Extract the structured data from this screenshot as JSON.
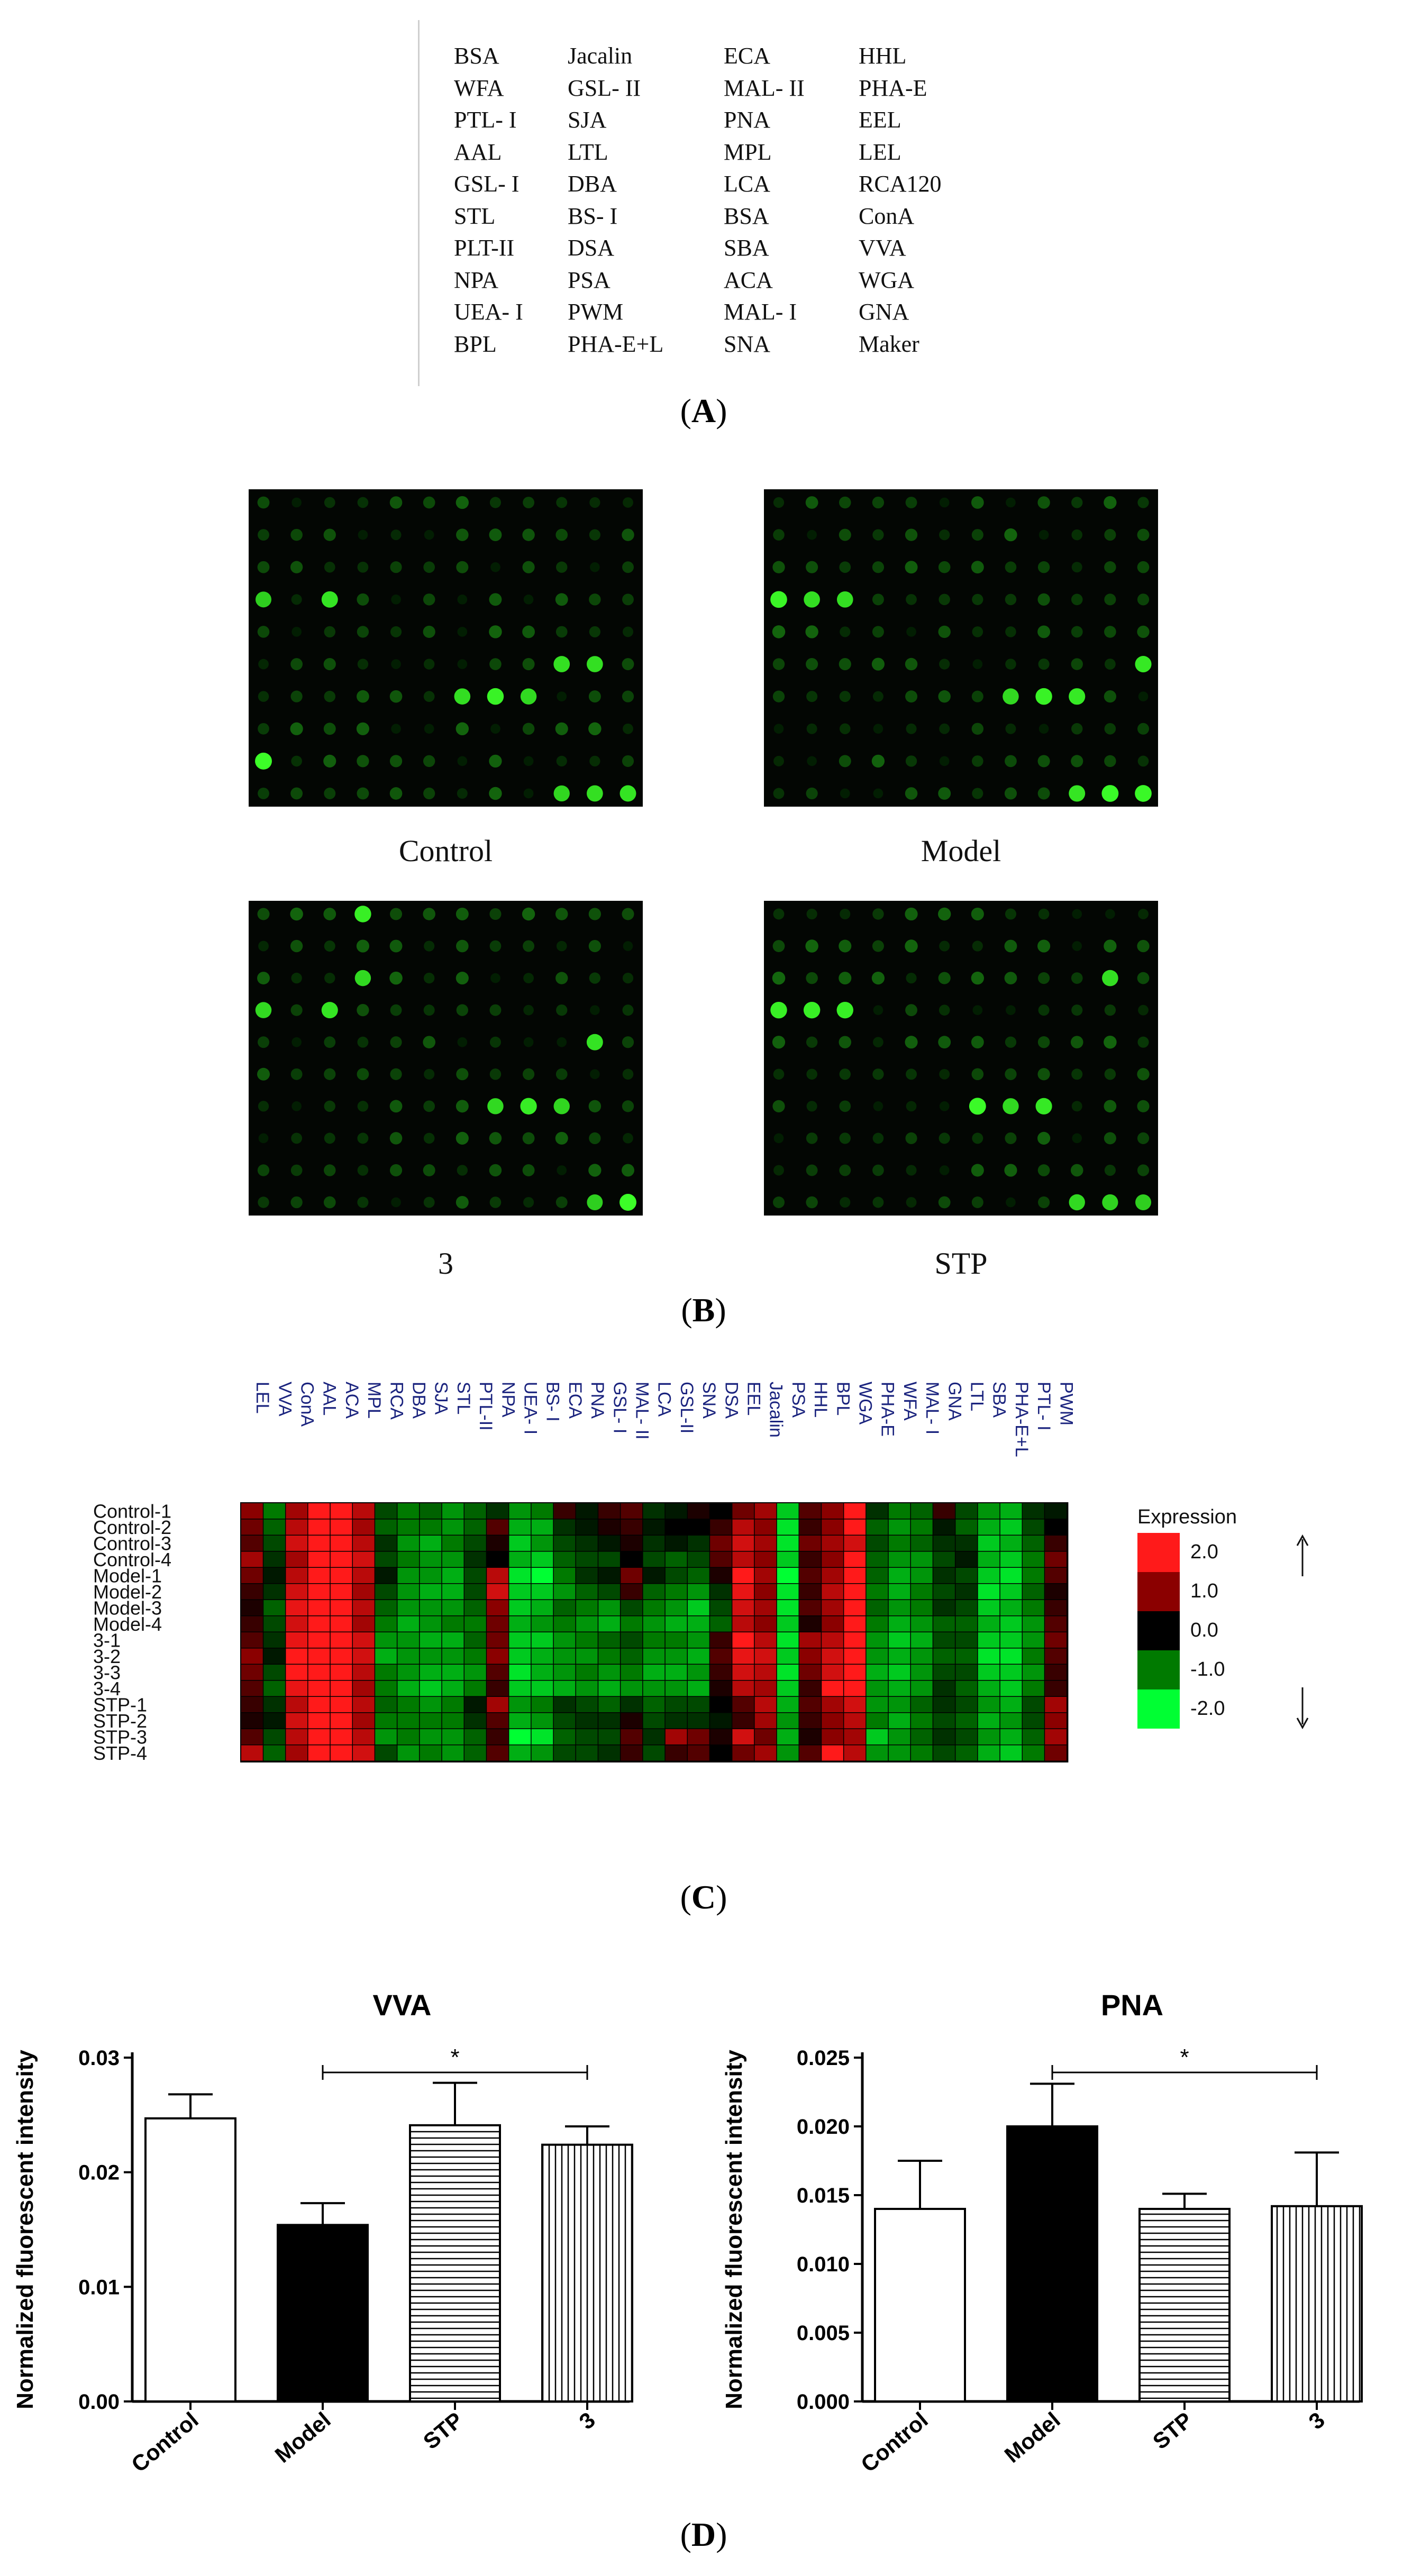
{
  "panelA": {
    "label": "A",
    "columns": [
      [
        "BSA",
        "WFA",
        "PTL- I",
        "AAL",
        "GSL- I",
        "STL",
        "PLT-II",
        "NPA",
        "UEA- I",
        "BPL"
      ],
      [
        "Jacalin",
        "GSL- II",
        "SJA",
        "LTL",
        "DBA",
        "BS- I",
        "DSA",
        "PSA",
        "PWM",
        "PHA-E+L"
      ],
      [
        "ECA",
        "MAL- II",
        "PNA",
        "MPL",
        "LCA",
        "BSA",
        "SBA",
        "ACA",
        "MAL- I",
        "SNA"
      ],
      [
        "HHL",
        "PHA-E",
        "EEL",
        "LEL",
        "RCA120",
        "ConA",
        "VVA",
        "WGA",
        "GNA",
        "Maker"
      ]
    ]
  },
  "panelB": {
    "label": "B",
    "arrays": [
      {
        "caption": "Control"
      },
      {
        "caption": "Model"
      },
      {
        "caption": "3"
      },
      {
        "caption": "STP"
      }
    ]
  },
  "panelC": {
    "label": "C",
    "legend": {
      "title": "Expression",
      "ticks": [
        "2.0",
        "1.0",
        "0.0",
        "-1.0",
        "-2.0"
      ],
      "colors": [
        "#ff1a1a",
        "#8b0000",
        "#000000",
        "#007a00",
        "#00ff33"
      ]
    }
  },
  "panelD": {
    "label": "D"
  },
  "chart_data": [
    {
      "type": "heatmap",
      "columns": [
        "LEL",
        "VVA",
        "ConA",
        "AAL",
        "ACA",
        "MPL",
        "RCA",
        "DBA",
        "SJA",
        "STL",
        "PTL-II",
        "NPA",
        "UEA- I",
        "BS- I",
        "ECA",
        "PNA",
        "GSL- I",
        "MAL- II",
        "LCA",
        "GSL-II",
        "SNA",
        "DSA",
        "EEL",
        "Jacalin",
        "PSA",
        "HHL",
        "BPL",
        "WGA",
        "PHA-E",
        "WFA",
        "MAL- I",
        "GNA",
        "LTL",
        "SBA",
        "PHA-E+L",
        "PTL- I",
        "PWM"
      ],
      "rows": [
        "Control-1",
        "Control-2",
        "Control-3",
        "Control-4",
        "Model-1",
        "Model-2",
        "Model-3",
        "Model-4",
        "3-1",
        "3-2",
        "3-3",
        "3-4",
        "STP-1",
        "STP-2",
        "STP-3",
        "STP-4"
      ],
      "values": [
        [
          1,
          -1,
          1.2,
          2,
          2,
          1.4,
          -0.6,
          -1,
          -0.8,
          -1.2,
          -0.8,
          -0.4,
          -1.2,
          -1,
          0.4,
          -0.2,
          0.4,
          0.6,
          -0.4,
          -0.2,
          0.2,
          0,
          0.8,
          1.2,
          -1.6,
          0.6,
          1,
          2,
          -0.4,
          -1,
          -0.8,
          0.4,
          -0.6,
          -1.2,
          -1.4,
          -0.4,
          -0.2
        ],
        [
          0.8,
          -0.8,
          1.4,
          2,
          2,
          1.2,
          -0.8,
          -1,
          -1,
          -1.2,
          -0.8,
          0.6,
          -1.4,
          -1.4,
          -0.4,
          -0.2,
          0.2,
          0.4,
          -0.2,
          0,
          0,
          0.4,
          1.4,
          1,
          -1.8,
          0.4,
          1,
          2,
          -0.8,
          -1.2,
          -1,
          -0.2,
          -0.8,
          -1.4,
          -1.6,
          -0.6,
          0
        ],
        [
          0.6,
          -0.6,
          1.6,
          2,
          2,
          1.4,
          -0.4,
          -1.2,
          -1.4,
          -1,
          -0.6,
          0.2,
          -1.6,
          -1.2,
          -0.6,
          -0.4,
          -0.2,
          0.2,
          -0.4,
          -0.2,
          -0.4,
          0.8,
          1.6,
          1.2,
          -1.8,
          0.8,
          1.2,
          1.6,
          -0.6,
          -1,
          -0.8,
          -0.4,
          -0.4,
          -1.6,
          -1.4,
          -0.8,
          0.4
        ],
        [
          1.2,
          -0.4,
          1.2,
          2,
          2,
          1.6,
          -0.6,
          -1,
          -1.2,
          -1.2,
          -0.4,
          0,
          -1.4,
          -1.6,
          -0.8,
          -0.6,
          -0.6,
          0,
          -0.6,
          -0.8,
          -0.6,
          0.6,
          1.4,
          1,
          -1.6,
          0.4,
          1,
          2,
          -0.8,
          -1.2,
          -1.2,
          -0.6,
          -0.2,
          -1.4,
          -1.6,
          -1,
          0.8
        ],
        [
          0.8,
          -0.2,
          1.4,
          2,
          2,
          1.4,
          -0.2,
          -1.2,
          -1.2,
          -1.4,
          -0.6,
          1.4,
          -1.8,
          -2,
          -1,
          -0.4,
          -0.2,
          0.8,
          -0.2,
          -0.6,
          -0.8,
          0.2,
          2,
          1.2,
          -2,
          0.6,
          1.2,
          2,
          -0.8,
          -1.4,
          -1.2,
          -0.4,
          -0.6,
          -1.6,
          -1.8,
          -1,
          0.6
        ],
        [
          0.4,
          -0.4,
          1.6,
          2,
          2,
          1.2,
          -0.6,
          -1.2,
          -1.4,
          -1.4,
          -0.6,
          1.6,
          -1.6,
          -1.6,
          -1.2,
          -0.8,
          -0.6,
          0.4,
          -0.8,
          -1,
          -1.2,
          -0.4,
          1.8,
          1,
          -1.8,
          0.4,
          1.4,
          2,
          -1,
          -1.4,
          -1,
          -0.6,
          -0.4,
          -1.8,
          -1.6,
          -0.8,
          0.2
        ],
        [
          0.2,
          -0.8,
          1.8,
          2,
          2,
          1.4,
          -0.8,
          -1.2,
          -1.2,
          -1.2,
          -0.8,
          1,
          -1.6,
          -1.4,
          -0.8,
          -1,
          -1.2,
          -0.6,
          -1,
          -1.2,
          -1.6,
          -0.6,
          1.6,
          1.2,
          -1.8,
          0.6,
          1.2,
          2,
          -0.8,
          -1.2,
          -1,
          -0.4,
          -0.6,
          -1.6,
          -1.4,
          -1,
          0.4
        ],
        [
          0.4,
          -0.6,
          1.6,
          2,
          2,
          1.2,
          -1,
          -1.4,
          -1.2,
          -1,
          -1,
          0.8,
          -1.4,
          -1.2,
          -1,
          -1.2,
          -1.4,
          -1,
          -1.2,
          -1.4,
          -1.4,
          -0.8,
          1.4,
          1,
          -1.6,
          0.2,
          1,
          2,
          -1,
          -1.4,
          -1.2,
          -0.8,
          -0.8,
          -1.4,
          -1.6,
          -1.2,
          0.6
        ],
        [
          0.6,
          -0.4,
          1.8,
          2,
          2,
          1.6,
          -1.2,
          -1.2,
          -1.4,
          -1.4,
          -0.8,
          0.8,
          -1.6,
          -1.6,
          -1.2,
          -1,
          -0.8,
          -0.6,
          -1,
          -1,
          -1.2,
          0.4,
          2,
          1.4,
          -1.8,
          1.2,
          1.4,
          2,
          -1.2,
          -1.6,
          -1.4,
          -0.6,
          -0.6,
          -1.6,
          -1.6,
          -1.2,
          0.8
        ],
        [
          1,
          -0.2,
          2,
          2,
          2,
          1.6,
          -1.4,
          -1.2,
          -1.2,
          -1.2,
          -1,
          1,
          -1.6,
          -1.4,
          -1.2,
          -1.2,
          -1,
          -0.8,
          -1.2,
          -1.2,
          -1.4,
          0.6,
          1.8,
          1.6,
          -1.6,
          1,
          1.6,
          2,
          -1.2,
          -1.4,
          -1.2,
          -0.8,
          -0.8,
          -1.8,
          -1.8,
          -1,
          0.6
        ],
        [
          0.8,
          -0.6,
          2,
          2,
          2,
          1.4,
          -1,
          -1.2,
          -1.4,
          -1.4,
          -1.2,
          0.6,
          -1.8,
          -1.4,
          -1.2,
          -1,
          -1.2,
          -1,
          -1.4,
          -1.4,
          -1.2,
          0.4,
          1.6,
          1.4,
          -1.8,
          0.8,
          1.6,
          2,
          -1.4,
          -1.6,
          -1.2,
          -0.6,
          -0.6,
          -1.6,
          -1.6,
          -1.2,
          0.4
        ],
        [
          0.6,
          -0.8,
          1.8,
          2,
          2,
          1.2,
          -1,
          -1.4,
          -1.6,
          -1.4,
          -1,
          0.4,
          -1.6,
          -1.6,
          -1.4,
          -1.2,
          -1.4,
          -1.2,
          -1.2,
          -1.2,
          -1.4,
          0.2,
          1.4,
          1.2,
          -1.6,
          0.4,
          2,
          2,
          -1.2,
          -1.4,
          -1.2,
          -0.4,
          -0.8,
          -1.4,
          -1.6,
          -1,
          0.4
        ],
        [
          0.4,
          -0.4,
          1.4,
          2,
          2,
          1.4,
          -0.8,
          -1,
          -1.2,
          -1,
          -0.2,
          1.2,
          -1.2,
          -1,
          -0.4,
          -0.6,
          -0.8,
          -0.4,
          -0.8,
          -0.6,
          -0.6,
          0,
          0.6,
          1.4,
          -1.4,
          0.6,
          1.2,
          1.6,
          -1.2,
          -1.2,
          -0.8,
          -0.4,
          -0.6,
          -1.2,
          -1.4,
          -0.6,
          1.2
        ],
        [
          0.2,
          -0.2,
          1.6,
          2,
          2,
          1.2,
          -1,
          -1,
          -1,
          -1,
          -0.4,
          0.6,
          -1.4,
          -1.2,
          -0.6,
          -0.4,
          -0.4,
          0.2,
          -0.6,
          -0.4,
          -0.4,
          -0.2,
          0.4,
          1.2,
          -1.2,
          0.4,
          1,
          1.4,
          -1,
          -1.4,
          -1,
          -0.6,
          -0.8,
          -1.4,
          -1.2,
          -0.6,
          1
        ],
        [
          0.6,
          -0.6,
          1.4,
          2,
          2,
          1.4,
          -1.2,
          -1,
          -1.2,
          -1.2,
          -0.8,
          0.4,
          -2,
          -1.8,
          -0.8,
          -0.6,
          -0.6,
          0.6,
          -0.4,
          1.2,
          0.8,
          0.2,
          1.6,
          0.8,
          -1.4,
          0.2,
          1,
          1.2,
          -1.6,
          -1.2,
          -0.8,
          -0.4,
          -0.6,
          -1.2,
          -1.4,
          -0.8,
          1.2
        ],
        [
          1.4,
          -0.8,
          1.2,
          2,
          2,
          1.6,
          -0.6,
          -1.2,
          -1,
          -1.2,
          -0.8,
          0.6,
          -1.4,
          -1.2,
          -0.6,
          -0.6,
          -0.4,
          0.4,
          -0.6,
          0.4,
          0.6,
          0,
          0.8,
          1.2,
          -1.2,
          0.6,
          2,
          1.4,
          -1.2,
          -1.2,
          -1,
          -0.6,
          -0.8,
          -1.4,
          -1.6,
          -1,
          0.8
        ]
      ]
    },
    {
      "type": "bar",
      "title": "VVA",
      "ylabel": "Normalized fluorescent intensity",
      "categories": [
        "Control",
        "Model",
        "STP",
        "3"
      ],
      "values": [
        0.0247,
        0.0154,
        0.0241,
        0.0224
      ],
      "errors": [
        0.0021,
        0.0019,
        0.0037,
        0.0016
      ],
      "fills": [
        "open",
        "solid",
        "horizontal-hatch",
        "vertical-hatch"
      ],
      "ylim": [
        0,
        0.03
      ],
      "yticks": [
        "0.00",
        "0.01",
        "0.02",
        "0.03"
      ],
      "significance": {
        "from": "Model",
        "to": "3",
        "label": "*"
      }
    },
    {
      "type": "bar",
      "title": "PNA",
      "ylabel": "Normalized  fluorescent intensity",
      "categories": [
        "Control",
        "Model",
        "STP",
        "3"
      ],
      "values": [
        0.014,
        0.02,
        0.014,
        0.0142
      ],
      "errors": [
        0.0035,
        0.0031,
        0.0011,
        0.0039
      ],
      "fills": [
        "open",
        "solid",
        "horizontal-hatch",
        "vertical-hatch"
      ],
      "ylim": [
        0,
        0.025
      ],
      "yticks": [
        "0.000",
        "0.005",
        "0.010",
        "0.015",
        "0.020",
        "0.025"
      ],
      "significance": {
        "from": "Model",
        "to": "3",
        "label": "*"
      }
    }
  ]
}
